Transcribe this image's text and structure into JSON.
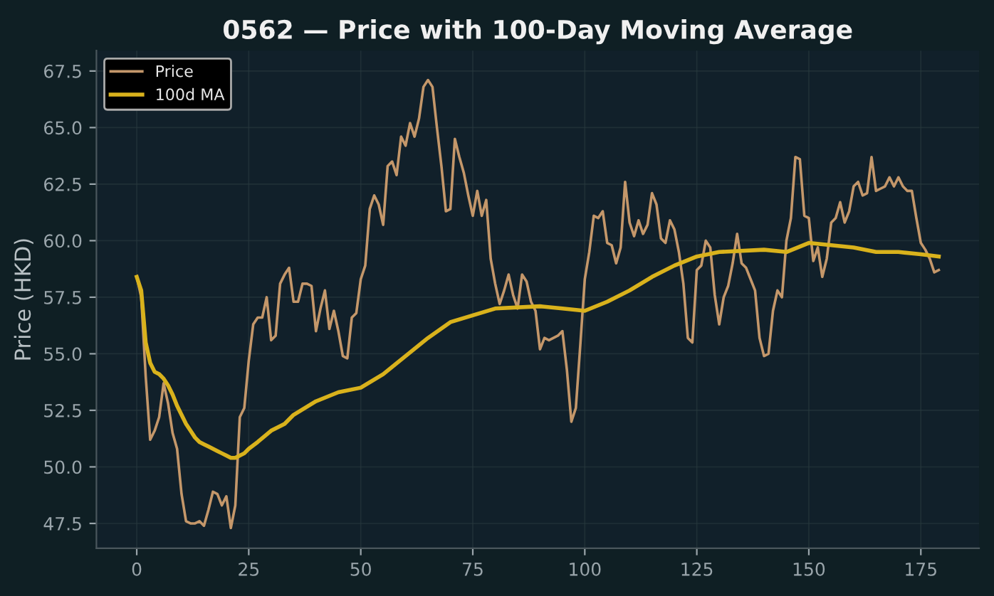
{
  "chart_data": {
    "type": "line",
    "title": "0562 — Price with 100-Day Moving Average",
    "ylabel": "Price (HKD)",
    "xlim": [
      -9,
      188
    ],
    "ylim": [
      46.4,
      68.4
    ],
    "xticks": [
      0,
      25,
      50,
      75,
      100,
      125,
      150,
      175
    ],
    "yticks": [
      {
        "value": 47.5,
        "label": "47.5"
      },
      {
        "value": 50,
        "label": "50.0"
      },
      {
        "value": 52.5,
        "label": "52.5"
      },
      {
        "value": 55,
        "label": "55.0"
      },
      {
        "value": 57.5,
        "label": "57.5"
      },
      {
        "value": 60,
        "label": "60.0"
      },
      {
        "value": 62.5,
        "label": "62.5"
      },
      {
        "value": 65,
        "label": "65.0"
      },
      {
        "value": 67.5,
        "label": "67.5"
      }
    ],
    "grid": true,
    "legend": "top left",
    "series": [
      {
        "name": "Price",
        "color": "#c4976a",
        "x": [
          0,
          1,
          2,
          3,
          4,
          5,
          6,
          7,
          8,
          9,
          10,
          11,
          12,
          13,
          14,
          15,
          16,
          17,
          18,
          19,
          20,
          21,
          22,
          23,
          24,
          25,
          26,
          27,
          28,
          29,
          30,
          31,
          32,
          33,
          34,
          35,
          36,
          37,
          38,
          39,
          40,
          41,
          42,
          43,
          44,
          45,
          46,
          47,
          48,
          49,
          50,
          51,
          52,
          53,
          54,
          55,
          56,
          57,
          58,
          59,
          60,
          61,
          62,
          63,
          64,
          65,
          66,
          67,
          68,
          69,
          70,
          71,
          72,
          73,
          74,
          75,
          76,
          77,
          78,
          79,
          80,
          81,
          82,
          83,
          84,
          85,
          86,
          87,
          88,
          89,
          90,
          91,
          92,
          93,
          94,
          95,
          96,
          97,
          98,
          99,
          100,
          101,
          102,
          103,
          104,
          105,
          106,
          107,
          108,
          109,
          110,
          111,
          112,
          113,
          114,
          115,
          116,
          117,
          118,
          119,
          120,
          121,
          122,
          123,
          124,
          125,
          126,
          127,
          128,
          129,
          130,
          131,
          132,
          133,
          134,
          135,
          136,
          137,
          138,
          139,
          140,
          141,
          142,
          143,
          144,
          145,
          146,
          147,
          148,
          149,
          150,
          151,
          152,
          153,
          154,
          155,
          156,
          157,
          158,
          159,
          160,
          161,
          162,
          163,
          164,
          165,
          166,
          167,
          168,
          169,
          170,
          171,
          172,
          173,
          174,
          175,
          176,
          177,
          178,
          179
        ],
        "values": [
          58.4,
          57.5,
          54.0,
          51.2,
          51.6,
          52.2,
          53.7,
          52.8,
          51.5,
          50.8,
          48.8,
          47.6,
          47.5,
          47.5,
          47.6,
          47.4,
          48.1,
          48.9,
          48.8,
          48.3,
          48.7,
          47.3,
          48.3,
          52.2,
          52.6,
          54.7,
          56.3,
          56.6,
          56.6,
          57.5,
          55.6,
          55.8,
          58.1,
          58.5,
          58.8,
          57.3,
          57.3,
          58.1,
          58.1,
          58.0,
          56.0,
          57.0,
          57.8,
          56.1,
          56.9,
          56.0,
          54.9,
          54.8,
          56.6,
          56.8,
          58.3,
          58.9,
          61.4,
          62.0,
          61.6,
          60.7,
          63.3,
          63.5,
          62.9,
          64.6,
          64.2,
          65.2,
          64.6,
          65.4,
          66.8,
          67.1,
          66.8,
          65.0,
          63.3,
          61.3,
          61.4,
          64.5,
          63.7,
          63.0,
          62.0,
          61.1,
          62.2,
          61.1,
          61.8,
          59.2,
          58.1,
          57.2,
          57.8,
          58.5,
          57.6,
          57.0,
          58.5,
          58.2,
          57.3,
          56.9,
          55.2,
          55.7,
          55.6,
          55.7,
          55.8,
          56.0,
          54.3,
          52.0,
          52.6,
          55.4,
          58.3,
          59.5,
          61.1,
          61.0,
          61.3,
          59.9,
          59.8,
          59.0,
          59.7,
          62.6,
          60.8,
          60.2,
          60.9,
          60.3,
          60.7,
          62.1,
          61.6,
          60.1,
          59.9,
          60.9,
          60.5,
          59.5,
          58.1,
          55.7,
          55.5,
          58.7,
          58.9,
          60.0,
          59.7,
          57.6,
          56.3,
          57.5,
          58.0,
          59.0,
          60.3,
          59.0,
          58.8,
          58.3,
          57.8,
          55.7,
          54.9,
          55.0,
          56.9,
          57.8,
          57.5,
          60.0,
          61.0,
          63.7,
          63.6,
          61.1,
          61.0,
          59.1,
          59.7,
          58.4,
          59.2,
          60.8,
          61.0,
          61.7,
          60.8,
          61.3,
          62.4,
          62.6,
          62.0,
          62.1,
          63.7,
          62.2,
          62.3,
          62.4,
          62.8,
          62.4,
          62.8,
          62.4,
          62.2,
          62.2,
          61.0,
          59.9,
          59.6,
          59.2,
          58.6,
          58.7
        ]
      },
      {
        "name": "100d MA",
        "color": "#d9b21c",
        "x": [
          0,
          1,
          2,
          3,
          4,
          5,
          6,
          7,
          8,
          9,
          10,
          11,
          12,
          13,
          14,
          15,
          16,
          17,
          18,
          19,
          20,
          21,
          22,
          23,
          24,
          25,
          27,
          30,
          33,
          35,
          40,
          45,
          50,
          55,
          60,
          65,
          70,
          75,
          80,
          90,
          95,
          100,
          105,
          110,
          115,
          120,
          125,
          130,
          140,
          145,
          150,
          155,
          160,
          165,
          170,
          175,
          179
        ],
        "values": [
          58.4,
          57.8,
          55.5,
          54.6,
          54.2,
          54.1,
          53.9,
          53.6,
          53.2,
          52.7,
          52.3,
          51.9,
          51.6,
          51.3,
          51.1,
          51.0,
          50.9,
          50.8,
          50.7,
          50.6,
          50.5,
          50.4,
          50.4,
          50.5,
          50.6,
          50.8,
          51.1,
          51.6,
          51.9,
          52.3,
          52.9,
          53.3,
          53.5,
          54.1,
          54.9,
          55.7,
          56.4,
          56.7,
          57.0,
          57.1,
          57.0,
          56.9,
          57.3,
          57.8,
          58.4,
          58.9,
          59.3,
          59.5,
          59.6,
          59.5,
          59.9,
          59.8,
          59.7,
          59.5,
          59.5,
          59.4,
          59.3
        ]
      }
    ]
  }
}
